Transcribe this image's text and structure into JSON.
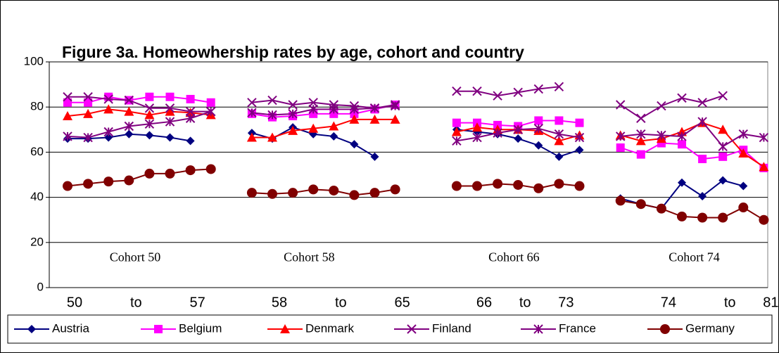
{
  "chart_data": {
    "type": "line",
    "title": "Figure 3a. Homeowhership rates by age, cohort and country",
    "annotations": [
      "Cohort 50",
      "Cohort 58",
      "Cohort 66",
      "Cohort 74"
    ],
    "categories": [
      "50",
      null,
      null,
      "to",
      null,
      null,
      "57",
      null,
      null,
      null,
      "58",
      null,
      null,
      "to",
      null,
      null,
      "65",
      null,
      null,
      null,
      "66",
      null,
      "to",
      null,
      "73",
      null,
      null,
      null,
      null,
      "74",
      null,
      null,
      "to",
      null,
      "81"
    ],
    "ylim": [
      0,
      100
    ],
    "yticks": [
      0,
      20,
      40,
      60,
      80,
      100
    ],
    "grid": true,
    "legend": "bottom",
    "series": [
      {
        "name": "Austria",
        "color": "#000080",
        "marker": "diamond",
        "values": [
          66,
          66,
          66.5,
          68,
          67.5,
          66.5,
          65,
          null,
          null,
          68.5,
          66,
          71,
          68,
          67,
          63.5,
          58,
          null,
          null,
          null,
          70,
          69,
          68,
          66,
          63,
          58,
          61,
          null,
          39.5,
          37,
          35,
          46.5,
          40.5,
          47.5,
          45,
          null
        ]
      },
      {
        "name": "Belgium",
        "color": "#ff00ff",
        "marker": "square",
        "values": [
          82,
          82,
          84.5,
          83,
          84.5,
          84.5,
          83.5,
          82,
          null,
          77,
          75.5,
          76,
          77,
          77,
          77,
          79,
          81,
          null,
          null,
          73,
          73,
          72,
          71.5,
          74,
          74,
          73,
          null,
          62,
          59,
          64,
          63.5,
          57,
          58,
          61,
          53
        ]
      },
      {
        "name": "Denmark",
        "color": "#ff0000",
        "marker": "triangle",
        "values": [
          76,
          77,
          79,
          78,
          76.5,
          78,
          77.5,
          76.5,
          null,
          66.5,
          66.5,
          69.5,
          70.5,
          71.5,
          74.5,
          74.5,
          74.5,
          null,
          null,
          69,
          71,
          70,
          70,
          69.5,
          65,
          67.5,
          null,
          67.5,
          65,
          66,
          69,
          73,
          70,
          59.5,
          53.5
        ]
      },
      {
        "name": "Finland",
        "color": "#800080",
        "marker": "x",
        "values": [
          84.5,
          84.5,
          83.5,
          83,
          79.5,
          79.5,
          78,
          78,
          null,
          82,
          83,
          81,
          82,
          81,
          80.5,
          79.5,
          81,
          null,
          null,
          87,
          87,
          85,
          86.5,
          88,
          89,
          null,
          null,
          81,
          75,
          80.5,
          84,
          82,
          85,
          null,
          null
        ]
      },
      {
        "name": "France",
        "color": "#800080",
        "marker": "asterisk",
        "values": [
          67,
          66.5,
          69,
          71.5,
          72.5,
          73.5,
          75,
          78,
          null,
          77.5,
          76.5,
          77,
          79,
          79,
          79,
          79.5,
          80.5,
          null,
          null,
          65,
          66.5,
          68.5,
          70,
          70.5,
          68,
          66.5,
          null,
          67,
          68,
          67.5,
          67,
          73.5,
          62.5,
          68,
          66.5
        ]
      },
      {
        "name": "Germany",
        "color": "#800000",
        "marker": "circle",
        "values": [
          45,
          46,
          47,
          47.5,
          50.5,
          50.5,
          52,
          52.5,
          null,
          42,
          41.5,
          42,
          43.5,
          43,
          41,
          42,
          43.5,
          null,
          null,
          45,
          45,
          46,
          45.5,
          44,
          46,
          45,
          null,
          38.5,
          37,
          35,
          31.5,
          31,
          31,
          35.5,
          30
        ]
      }
    ]
  }
}
